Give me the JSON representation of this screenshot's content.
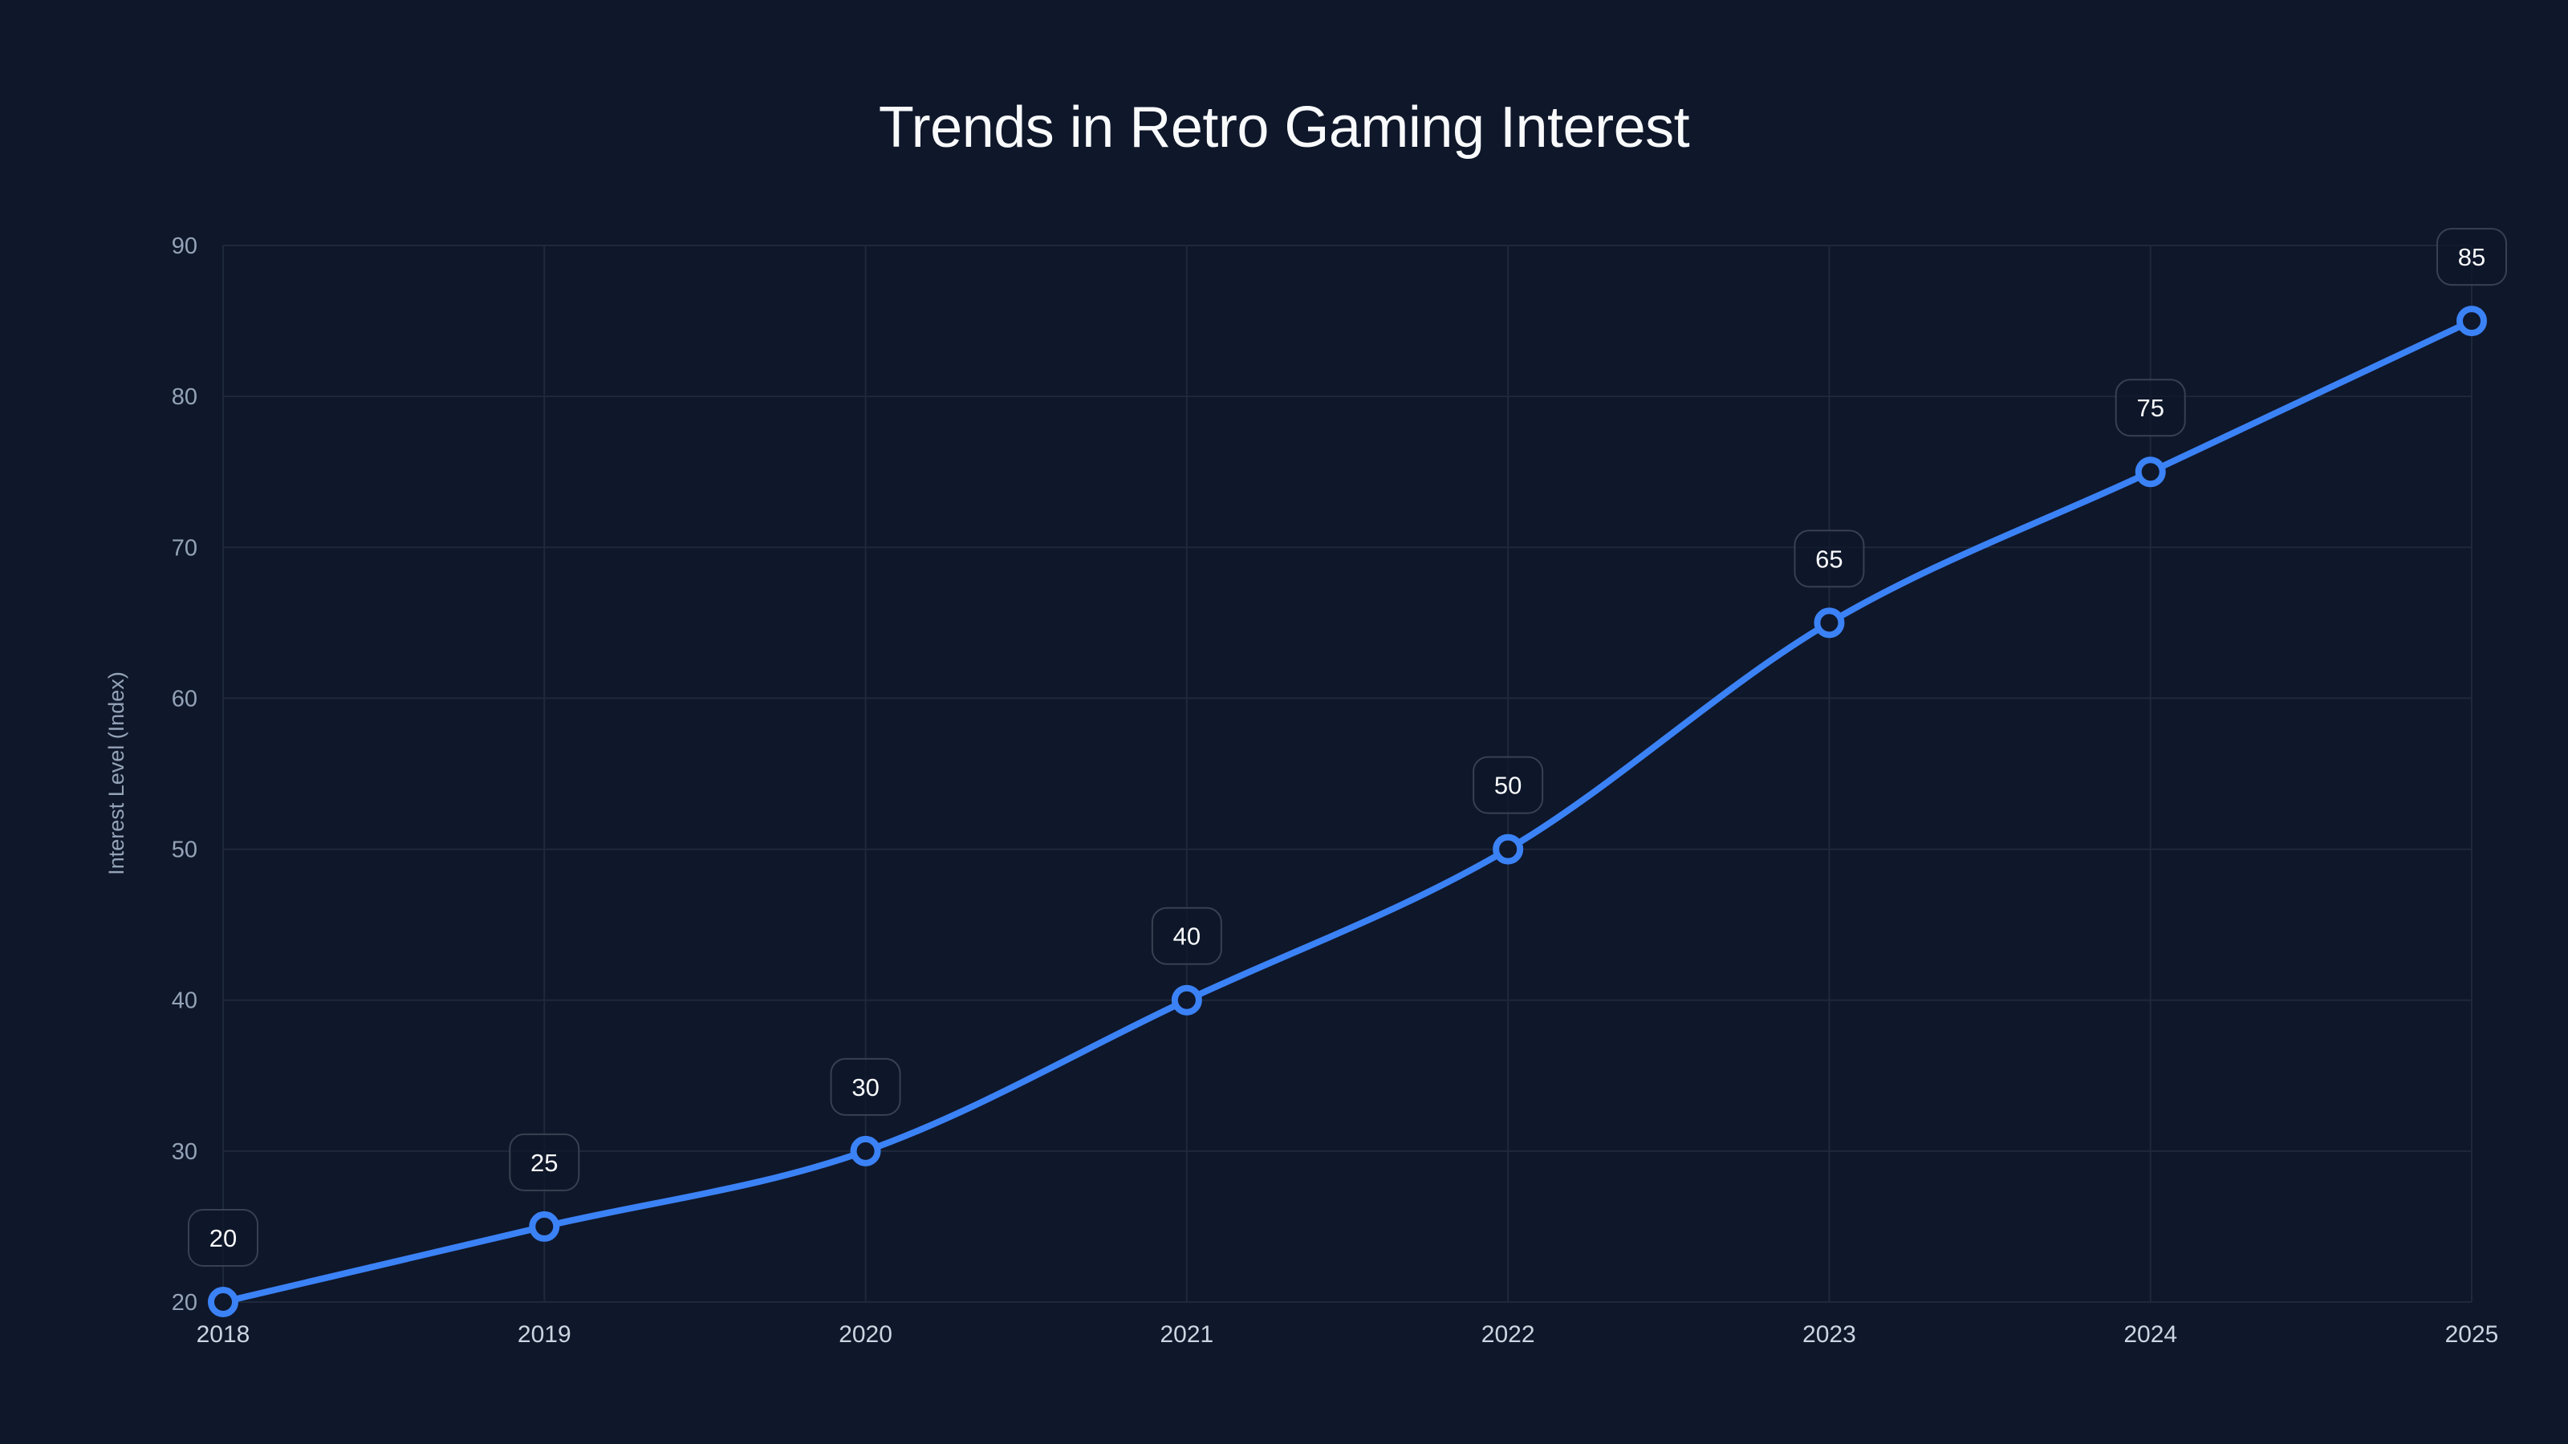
{
  "title": "Trends in Retro Gaming Interest",
  "colors": {
    "background": "#0f172a",
    "grid": "#1e293b",
    "line": "#3b82f6",
    "label_border": "#374151",
    "label_fill": "#0f172a"
  },
  "chart_data": {
    "type": "line",
    "title": "Trends in Retro Gaming Interest",
    "xlabel": "",
    "ylabel": "Interest Level (Index)",
    "categories": [
      "2018",
      "2019",
      "2020",
      "2021",
      "2022",
      "2023",
      "2024",
      "2025"
    ],
    "series": [
      {
        "name": "Interest Level",
        "values": [
          20,
          25,
          30,
          40,
          50,
          65,
          75,
          85
        ]
      }
    ],
    "ylim": [
      20,
      90
    ],
    "yticks": [
      20,
      30,
      40,
      50,
      60,
      70,
      80,
      90
    ],
    "grid": true,
    "legend": "none",
    "data_labels": true,
    "smooth": true
  }
}
